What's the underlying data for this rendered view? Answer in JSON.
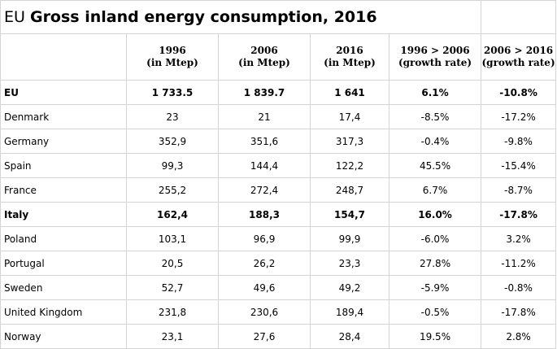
{
  "title": {
    "prefix": "EU",
    "main": "Gross inland energy consumption, 2016"
  },
  "columns": [
    {
      "line1": "1996",
      "line2": "(in Mtep)"
    },
    {
      "line1": "2006",
      "line2": "(in Mtep)"
    },
    {
      "line1": "2016",
      "line2": "(in Mtep)"
    },
    {
      "line1": "1996 > 2006",
      "line2": "(growth rate)"
    },
    {
      "line1": "2006 > 2016",
      "line2": "(growth rate)"
    }
  ],
  "rows": [
    {
      "country": "EU",
      "bold": true,
      "values": [
        "1 733.5",
        "1 839.7",
        "1 641",
        "6.1%",
        "-10.8%"
      ]
    },
    {
      "country": "Denmark",
      "bold": false,
      "values": [
        "23",
        "21",
        "17,4",
        "-8.5%",
        "-17.2%"
      ]
    },
    {
      "country": "Germany",
      "bold": false,
      "values": [
        "352,9",
        "351,6",
        "317,3",
        "-0.4%",
        "-9.8%"
      ]
    },
    {
      "country": "Spain",
      "bold": false,
      "values": [
        "99,3",
        "144,4",
        "122,2",
        "45.5%",
        "-15.4%"
      ]
    },
    {
      "country": "France",
      "bold": false,
      "values": [
        "255,2",
        "272,4",
        "248,7",
        "6.7%",
        "-8.7%"
      ]
    },
    {
      "country": "Italy",
      "bold": true,
      "values": [
        "162,4",
        "188,3",
        "154,7",
        "16.0%",
        "-17.8%"
      ]
    },
    {
      "country": "Poland",
      "bold": false,
      "values": [
        "103,1",
        "96,9",
        "99,9",
        "-6.0%",
        "3.2%"
      ]
    },
    {
      "country": "Portugal",
      "bold": false,
      "values": [
        "20,5",
        "26,2",
        "23,3",
        "27.8%",
        "-11.2%"
      ]
    },
    {
      "country": "Sweden",
      "bold": false,
      "values": [
        "52,7",
        "49,6",
        "49,2",
        "-5.9%",
        "-0.8%"
      ]
    },
    {
      "country": "United Kingdom",
      "bold": false,
      "values": [
        "231,8",
        "230,6",
        "189,4",
        "-0.5%",
        "-17.8%"
      ]
    },
    {
      "country": "Norway",
      "bold": false,
      "values": [
        "23,1",
        "27,6",
        "28,4",
        "19.5%",
        "2.8%"
      ]
    }
  ]
}
